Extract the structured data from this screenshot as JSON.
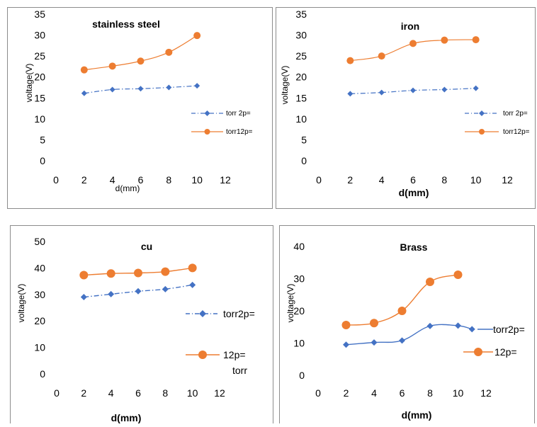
{
  "colors": {
    "blue": "#4472C4",
    "orange": "#ED7D31",
    "axis_text": "#000000",
    "frame": "#8c8c8c"
  },
  "chart_data": [
    {
      "type": "line",
      "title": "stainless steel",
      "xlabel": "d(mm)",
      "ylabel": "voltage(V)",
      "xlim": [
        0,
        12
      ],
      "ylim": [
        0,
        35
      ],
      "x_ticks": [
        "0",
        "2",
        "4",
        "6",
        "8",
        "10",
        "12"
      ],
      "y_ticks": [
        "0",
        "5",
        "10",
        "15",
        "20",
        "25",
        "30",
        "35"
      ],
      "series": [
        {
          "name": "torr 2p=",
          "x": [
            2,
            4,
            6,
            8,
            10
          ],
          "values": [
            16.1,
            17.0,
            17.2,
            17.5,
            17.9
          ],
          "color": "#4472C4",
          "marker": "diamond",
          "dash": "dash-dot"
        },
        {
          "name": "torr12p=",
          "x": [
            2,
            4,
            6,
            8,
            10
          ],
          "values": [
            21.7,
            22.6,
            23.8,
            25.9,
            29.9
          ],
          "color": "#ED7D31",
          "marker": "circle",
          "dash": "solid"
        }
      ],
      "legend": "right"
    },
    {
      "type": "line",
      "title": "iron",
      "xlabel": "d(mm)",
      "ylabel": "voltage(V)",
      "xlim": [
        0,
        12
      ],
      "ylim": [
        0,
        35
      ],
      "x_ticks": [
        "0",
        "2",
        "4",
        "6",
        "8",
        "10",
        "12"
      ],
      "y_ticks": [
        "0",
        "5",
        "10",
        "15",
        "20",
        "25",
        "30",
        "35"
      ],
      "series": [
        {
          "name": "torr 2p=",
          "x": [
            2,
            4,
            6,
            8,
            10
          ],
          "values": [
            16.0,
            16.3,
            16.8,
            17.0,
            17.3
          ],
          "color": "#4472C4",
          "marker": "diamond",
          "dash": "dash-dot"
        },
        {
          "name": "torr12p=",
          "x": [
            2,
            4,
            6,
            8,
            10
          ],
          "values": [
            23.9,
            25.0,
            28.0,
            28.8,
            28.9
          ],
          "color": "#ED7D31",
          "marker": "circle",
          "dash": "solid"
        }
      ],
      "legend": "right"
    },
    {
      "type": "line",
      "title": "cu",
      "xlabel": "d(mm)",
      "ylabel": "voltage(V)",
      "xlim": [
        0,
        12
      ],
      "ylim": [
        0,
        50
      ],
      "x_ticks": [
        "0",
        "2",
        "4",
        "6",
        "8",
        "10",
        "12"
      ],
      "y_ticks": [
        "0",
        "10",
        "20",
        "30",
        "40",
        "50"
      ],
      "series": [
        {
          "name": "torr2p=",
          "x": [
            2,
            4,
            6,
            8,
            10
          ],
          "values": [
            29.0,
            30.1,
            31.2,
            32.0,
            33.6
          ],
          "color": "#4472C4",
          "marker": "diamond",
          "dash": "dash-dot"
        },
        {
          "name": "12p=",
          "name_line2": "torr",
          "x": [
            2,
            4,
            6,
            8,
            10
          ],
          "values": [
            37.3,
            37.9,
            38.1,
            38.6,
            40.0
          ],
          "color": "#ED7D31",
          "marker": "circle",
          "dash": "solid"
        }
      ],
      "legend": "right"
    },
    {
      "type": "line",
      "title": "Brass",
      "xlabel": "d(mm)",
      "ylabel": "voltage(V)",
      "xlim": [
        0,
        12
      ],
      "ylim": [
        0,
        40
      ],
      "x_ticks": [
        "0",
        "2",
        "4",
        "6",
        "8",
        "10",
        "12"
      ],
      "y_ticks": [
        "0",
        "10",
        "20",
        "30",
        "40"
      ],
      "series": [
        {
          "name": "torr2p=",
          "x": [
            2,
            4,
            6,
            8,
            10,
            11
          ],
          "values": [
            9.5,
            10.2,
            10.8,
            15.3,
            15.4,
            14.3
          ],
          "color": "#4472C4",
          "marker": "diamond",
          "dash": "solid"
        },
        {
          "name": "12p=",
          "x": [
            2,
            4,
            6,
            8,
            10
          ],
          "values": [
            15.6,
            16.2,
            20.0,
            29.0,
            31.2
          ],
          "color": "#ED7D31",
          "marker": "circle",
          "dash": "solid"
        }
      ],
      "legend": "right"
    }
  ]
}
